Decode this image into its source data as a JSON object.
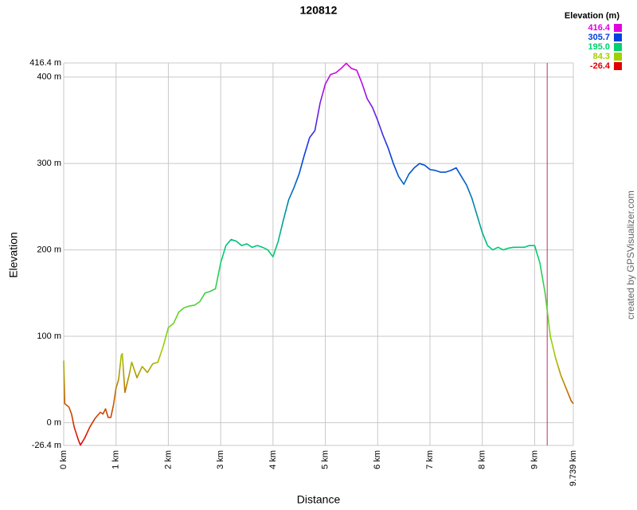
{
  "chart_data": {
    "type": "line",
    "title": "120812",
    "x_label": "Distance",
    "y_label": "Elevation",
    "credit": "created by GPSVisualizer.com",
    "x": [
      0,
      0.02,
      0.1,
      0.15,
      0.2,
      0.28,
      0.32,
      0.4,
      0.5,
      0.6,
      0.7,
      0.75,
      0.8,
      0.85,
      0.9,
      0.95,
      1.0,
      1.05,
      1.1,
      1.12,
      1.17,
      1.25,
      1.3,
      1.4,
      1.5,
      1.6,
      1.7,
      1.8,
      1.9,
      2.0,
      2.1,
      2.2,
      2.3,
      2.4,
      2.5,
      2.6,
      2.7,
      2.8,
      2.9,
      3.0,
      3.1,
      3.2,
      3.3,
      3.4,
      3.5,
      3.6,
      3.7,
      3.8,
      3.9,
      4.0,
      4.1,
      4.2,
      4.3,
      4.4,
      4.5,
      4.6,
      4.7,
      4.8,
      4.9,
      5.0,
      5.1,
      5.2,
      5.3,
      5.4,
      5.5,
      5.6,
      5.7,
      5.8,
      5.9,
      6.0,
      6.1,
      6.2,
      6.3,
      6.4,
      6.5,
      6.6,
      6.7,
      6.8,
      6.9,
      7.0,
      7.1,
      7.2,
      7.3,
      7.4,
      7.5,
      7.6,
      7.7,
      7.8,
      7.9,
      8.0,
      8.1,
      8.2,
      8.3,
      8.4,
      8.5,
      8.6,
      8.7,
      8.8,
      8.9,
      9.0,
      9.1,
      9.2,
      9.3,
      9.4,
      9.5,
      9.6,
      9.7,
      9.739
    ],
    "values": [
      72,
      22,
      18,
      10,
      -5,
      -20,
      -26,
      -18,
      -5,
      5,
      12,
      10,
      16,
      6,
      6,
      20,
      40,
      50,
      78,
      80,
      35,
      55,
      70,
      52,
      65,
      58,
      68,
      70,
      88,
      110,
      115,
      128,
      133,
      135,
      136,
      140,
      150,
      152,
      155,
      185,
      205,
      212,
      210,
      205,
      207,
      203,
      205,
      203,
      200,
      192,
      210,
      235,
      258,
      272,
      288,
      310,
      330,
      338,
      370,
      392,
      403,
      405,
      410,
      416,
      410,
      408,
      393,
      375,
      365,
      350,
      333,
      318,
      300,
      285,
      276,
      288,
      295,
      300,
      298,
      293,
      292,
      290,
      290,
      292,
      295,
      285,
      275,
      260,
      240,
      220,
      205,
      200,
      203,
      200,
      202,
      203,
      203,
      203,
      205,
      205,
      185,
      150,
      100,
      75,
      55,
      40,
      25,
      22
    ],
    "xlim": [
      0,
      9.739
    ],
    "xticks": [
      {
        "value": 0,
        "label": "0 km"
      },
      {
        "value": 1,
        "label": "1 km"
      },
      {
        "value": 2,
        "label": "2 km"
      },
      {
        "value": 3,
        "label": "3 km"
      },
      {
        "value": 4,
        "label": "4 km"
      },
      {
        "value": 5,
        "label": "5 km"
      },
      {
        "value": 6,
        "label": "6 km"
      },
      {
        "value": 7,
        "label": "7 km"
      },
      {
        "value": 8,
        "label": "8 km"
      },
      {
        "value": 9,
        "label": "9 km"
      },
      {
        "value": 9.739,
        "label": "9.739 km"
      }
    ],
    "ylim": [
      -26.4,
      416.4
    ],
    "yticks": [
      {
        "value": -26.4,
        "label": "-26.4 m"
      },
      {
        "value": 0,
        "label": "0 m"
      },
      {
        "value": 100,
        "label": "100 m"
      },
      {
        "value": 200,
        "label": "200 m"
      },
      {
        "value": 300,
        "label": "300 m"
      },
      {
        "value": 400,
        "label": "400 m"
      },
      {
        "value": 416.4,
        "label": "416.4 m"
      }
    ],
    "grid": true,
    "marker_x": 9.24,
    "marker_color": "#c0306a",
    "legend": {
      "title": "Elevation (m)",
      "items": [
        {
          "value": 416.4,
          "label": "416.4",
          "color": "#e000e0"
        },
        {
          "value": 305.7,
          "label": "305.7",
          "color": "#0040e0"
        },
        {
          "value": 195.0,
          "label": "195.0",
          "color": "#00d070"
        },
        {
          "value": 84.3,
          "label": "84.3",
          "color": "#a0d000"
        },
        {
          "value": -26.4,
          "label": "-26.4",
          "color": "#e00000"
        }
      ]
    }
  }
}
